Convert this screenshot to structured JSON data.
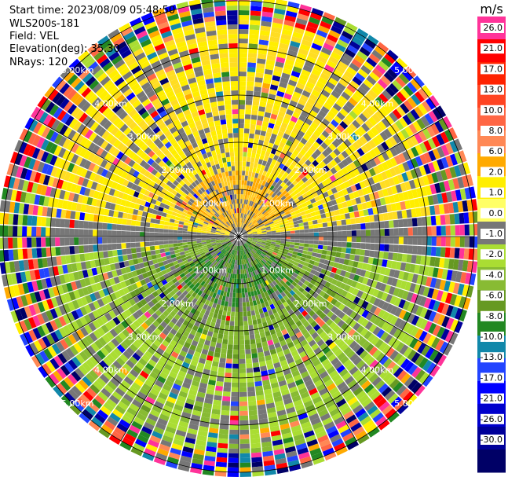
{
  "header": {
    "start_time": "Start time: 2023/08/09 05:48:50",
    "instrument": "WLS200s-181",
    "field": "Field: VEL",
    "elevation": "Elevation(deg): 35.30",
    "nrays": "NRays: 120"
  },
  "chart_data": {
    "type": "heatmap",
    "projection": "polar-ppi",
    "field": "VEL",
    "units": "m/s",
    "range_rings": [
      "1.00km",
      "2.00km",
      "3.00km",
      "4.00km",
      "5.00km"
    ],
    "colorbar": {
      "ticks": [
        "26.0",
        "21.0",
        "17.0",
        "13.0",
        "10.0",
        "8.0",
        "6.0",
        "2.0",
        "1.0",
        "0.0",
        "-1.0",
        "-2.0",
        "-4.0",
        "-6.0",
        "-8.0",
        "-10.0",
        "-13.0",
        "-17.0",
        "-21.0",
        "-26.0",
        "-30.0"
      ],
      "colors": [
        "#ff3399",
        "#ff0000",
        "#ff2200",
        "#ff4422",
        "#ff6644",
        "#ff8855",
        "#ffaa00",
        "#ffee00",
        "#ffff66",
        "#777777",
        "#aadd33",
        "#88bb33",
        "#669922",
        "#228822",
        "#1188aa",
        "#2244ff",
        "#0000ff",
        "#0000cc",
        "#000099",
        "#000066"
      ]
    },
    "pattern": {
      "north_half": "positive velocities (yellow/orange, about 1 to 8 m/s) out to ~4 km",
      "south_half": "negative velocities (green, about -1 to -6 m/s) out to ~4.5 km",
      "beyond_4_5km": "noise (all colors)"
    }
  }
}
